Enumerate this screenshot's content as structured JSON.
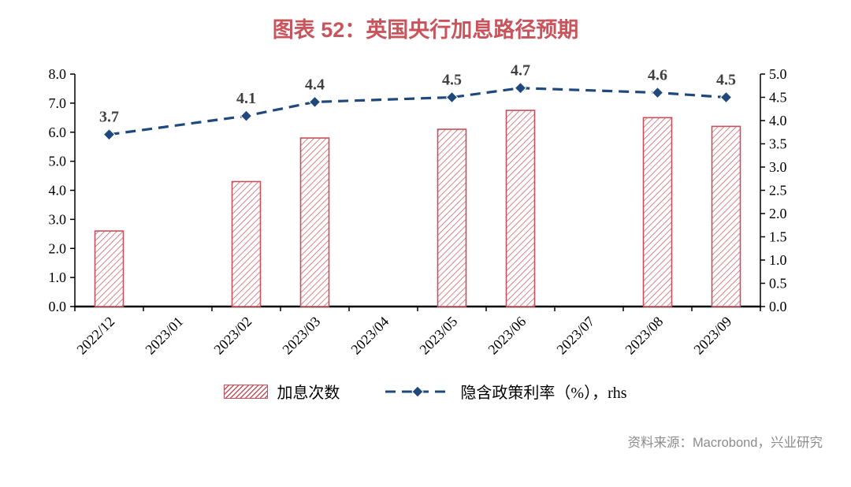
{
  "page": {
    "title": "图表 52：英国央行加息路径预期",
    "source": "资料来源：Macrobond，兴业研究"
  },
  "chart_data": {
    "type": "bar",
    "title": "图表 52：英国央行加息路径预期",
    "categories": [
      "2022/12",
      "2023/01",
      "2023/02",
      "2023/03",
      "2023/04",
      "2023/05",
      "2023/06",
      "2023/07",
      "2023/08",
      "2023/09"
    ],
    "series": [
      {
        "name": "加息次数",
        "type": "bar",
        "axis": "left",
        "values": [
          2.6,
          null,
          4.3,
          5.8,
          null,
          6.1,
          6.75,
          null,
          6.5,
          6.2
        ]
      },
      {
        "name": "隐含政策利率（%），rhs",
        "type": "line",
        "axis": "right",
        "values": [
          3.7,
          null,
          4.1,
          4.4,
          null,
          4.5,
          4.7,
          null,
          4.6,
          4.5
        ],
        "point_labels": [
          "3.7",
          null,
          "4.1",
          "4.4",
          null,
          "4.5",
          "4.7",
          null,
          "4.6",
          "4.5"
        ]
      }
    ],
    "left_axis": {
      "min": 0,
      "max": 8,
      "ticks": [
        "0.0",
        "1.0",
        "2.0",
        "3.0",
        "4.0",
        "5.0",
        "6.0",
        "7.0",
        "8.0"
      ]
    },
    "right_axis": {
      "min": 0,
      "max": 5,
      "ticks": [
        "0.0",
        "0.5",
        "1.0",
        "1.5",
        "2.0",
        "2.5",
        "3.0",
        "3.5",
        "4.0",
        "4.5",
        "5.0"
      ]
    },
    "legend_position": "bottom",
    "grid": false,
    "colors": {
      "bar": "#C4515C",
      "line": "#1F497D",
      "title": "#C9545C",
      "point_label": "#404040",
      "source_text": "#8C8C8C",
      "axis": "#000000"
    }
  }
}
